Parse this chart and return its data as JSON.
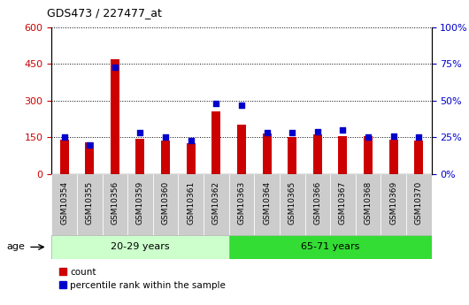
{
  "title": "GDS473 / 227477_at",
  "samples": [
    "GSM10354",
    "GSM10355",
    "GSM10356",
    "GSM10359",
    "GSM10360",
    "GSM10361",
    "GSM10362",
    "GSM10363",
    "GSM10364",
    "GSM10365",
    "GSM10366",
    "GSM10367",
    "GSM10368",
    "GSM10369",
    "GSM10370"
  ],
  "counts": [
    140,
    130,
    470,
    145,
    135,
    125,
    255,
    200,
    165,
    150,
    160,
    155,
    155,
    140,
    135
  ],
  "percentile_ranks": [
    25,
    20,
    73,
    28,
    25,
    23,
    48,
    47,
    28,
    28,
    29,
    30,
    25,
    26,
    25
  ],
  "group1_label": "20-29 years",
  "group2_label": "65-71 years",
  "group1_count": 7,
  "group2_count": 8,
  "ylim_left": [
    0,
    600
  ],
  "ylim_right": [
    0,
    100
  ],
  "yticks_left": [
    0,
    150,
    300,
    450,
    600
  ],
  "yticks_right": [
    0,
    25,
    50,
    75,
    100
  ],
  "bar_color": "#cc0000",
  "scatter_color": "#0000cc",
  "group1_bg": "#ccffcc",
  "group2_bg": "#33dd33",
  "tick_bg": "#cccccc",
  "legend_bar_label": "count",
  "legend_scatter_label": "percentile rank within the sample",
  "age_label": "age"
}
